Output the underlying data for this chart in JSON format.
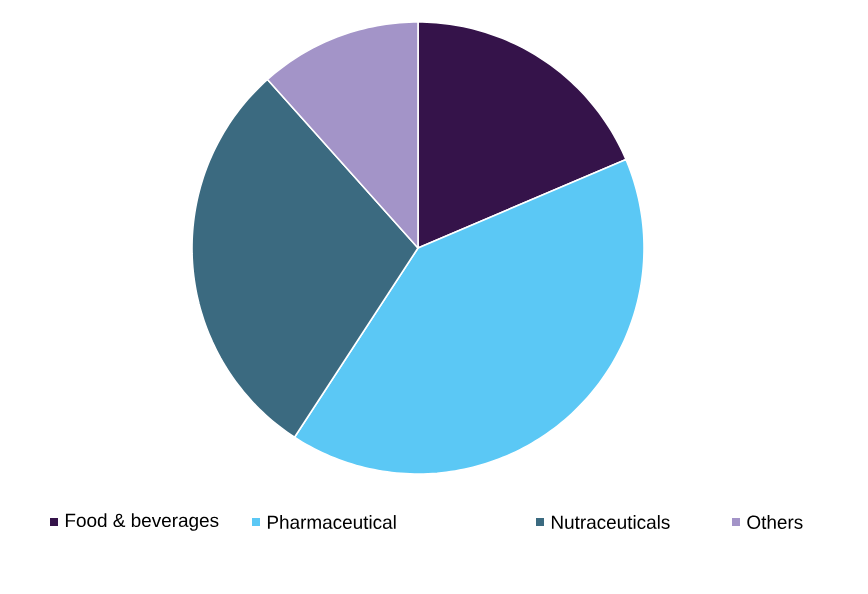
{
  "chart_data": {
    "type": "pie",
    "categories": [
      "Food & beverages",
      "Pharmaceutical",
      "Nutraceuticals",
      "Others"
    ],
    "values": [
      18.6,
      40.6,
      29.2,
      11.6
    ],
    "colors": [
      "#35134a",
      "#5bc8f5",
      "#3b6a80",
      "#a394c8"
    ],
    "legend": "bottom"
  }
}
